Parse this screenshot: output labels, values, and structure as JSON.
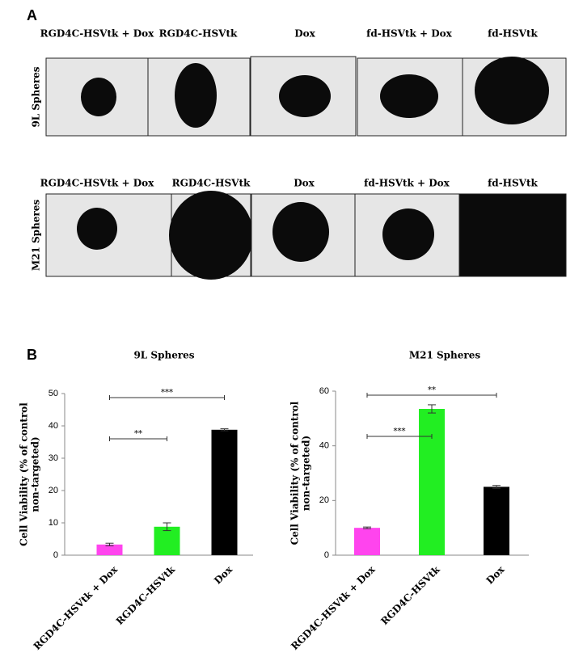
{
  "panel_a": {
    "label": "A",
    "rows": [
      {
        "label": "9L Spheres",
        "columns": [
          "RGD4C-HSVtk + Dox",
          "RGD4C-HSVtk",
          "Dox",
          "fd-HSVtk + Dox",
          "fd-HSVtk"
        ]
      },
      {
        "label": "M21 Spheres",
        "columns": [
          "RGD4C-HSVtk + Dox",
          "RGD4C-HSVtk",
          "Dox",
          "fd-HSVtk + Dox",
          "fd-HSVtk"
        ]
      }
    ]
  },
  "panel_b": {
    "label": "B"
  },
  "chart_data": [
    {
      "type": "bar",
      "title": "9L Spheres",
      "y_label": [
        "Cell Viability (% of control",
        "non-targeted)"
      ],
      "categories": [
        "RGD4C-HSVtk + Dox",
        "RGD4C-HSVtk",
        "Dox"
      ],
      "values": [
        3.3,
        8.8,
        38.8
      ],
      "errors": [
        0.4,
        1.2,
        0.3
      ],
      "colors": [
        "#ff44ee",
        "#22ee22",
        "#000000"
      ],
      "ylim": [
        0,
        50
      ],
      "yticks": [
        0,
        10,
        20,
        30,
        40,
        50
      ],
      "annotations": [
        {
          "text": "***",
          "from": 0,
          "to": 2
        },
        {
          "text": "**",
          "from": 0,
          "to": 1
        }
      ]
    },
    {
      "type": "bar",
      "title": "M21 Spheres",
      "y_label": [
        "Cell Viability (% of control",
        "non-targeted)"
      ],
      "categories": [
        "RGD4C-HSVtk + Dox",
        "RGD4C-HSVtk",
        "Dox"
      ],
      "values": [
        10,
        53.5,
        25
      ],
      "errors": [
        0.3,
        1.5,
        0.5
      ],
      "colors": [
        "#ff44ee",
        "#22ee22",
        "#000000"
      ],
      "ylim": [
        0,
        60
      ],
      "yticks": [
        0,
        20,
        40,
        60
      ],
      "annotations": [
        {
          "text": "**",
          "from": 0,
          "to": 2
        },
        {
          "text": "***",
          "from": 0,
          "to": 1
        }
      ]
    }
  ]
}
